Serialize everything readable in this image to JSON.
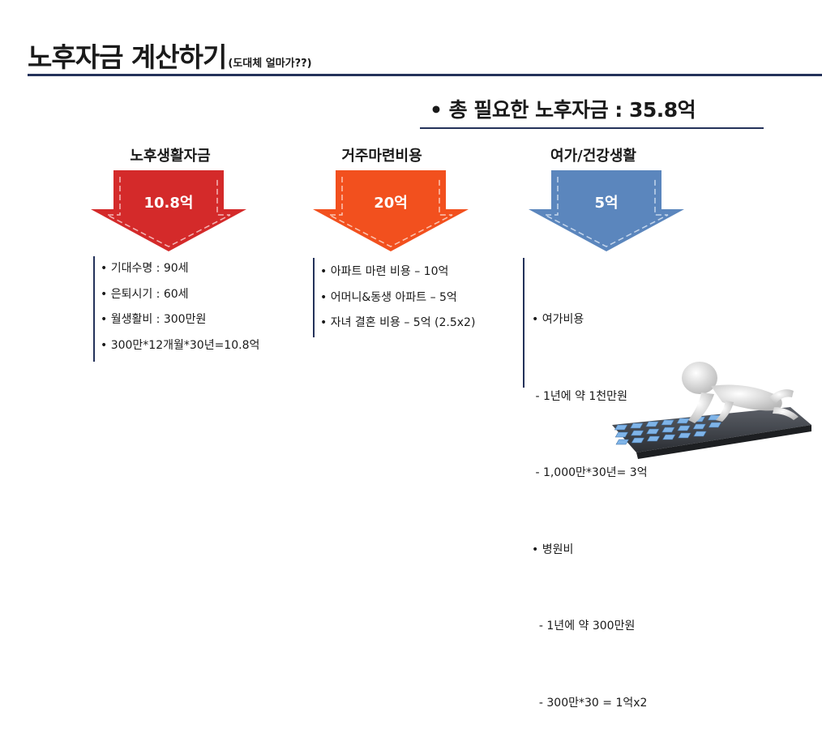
{
  "title": {
    "main": "노후자금 계산하기",
    "sub": "(도대체 얼마가??)"
  },
  "total": "• 총 필요한 노후자금 : 35.8억",
  "columns": [
    {
      "heading": "노후생활자금",
      "value": "10.8억",
      "color": "#d42a2a",
      "items": [
        "• 기대수명 : 90세",
        "• 은퇴시기 : 60세",
        "• 월생활비 : 300만원",
        "• 300만*12개월*30년=10.8억"
      ]
    },
    {
      "heading": "거주마련비용",
      "value": "20억",
      "color": "#f2501e",
      "items": [
        "• 아파트 마련 비용 – 10억",
        "• 어머니&동생 아파트 – 5억",
        "• 자녀 결혼 비용 – 5억 (2.5x2)"
      ]
    },
    {
      "heading": "여가/건강생활",
      "value": "5억",
      "color": "#5b86bd",
      "items": [
        "• 여가비용",
        " - 1년에 약 1천만원",
        " - 1,000만*30년= 3억",
        "• 병원비",
        "  - 1년에 약 300만원",
        "  - 300만*30 = 1억x2"
      ]
    }
  ],
  "icons": {
    "figure": "person-on-calculator-icon"
  }
}
